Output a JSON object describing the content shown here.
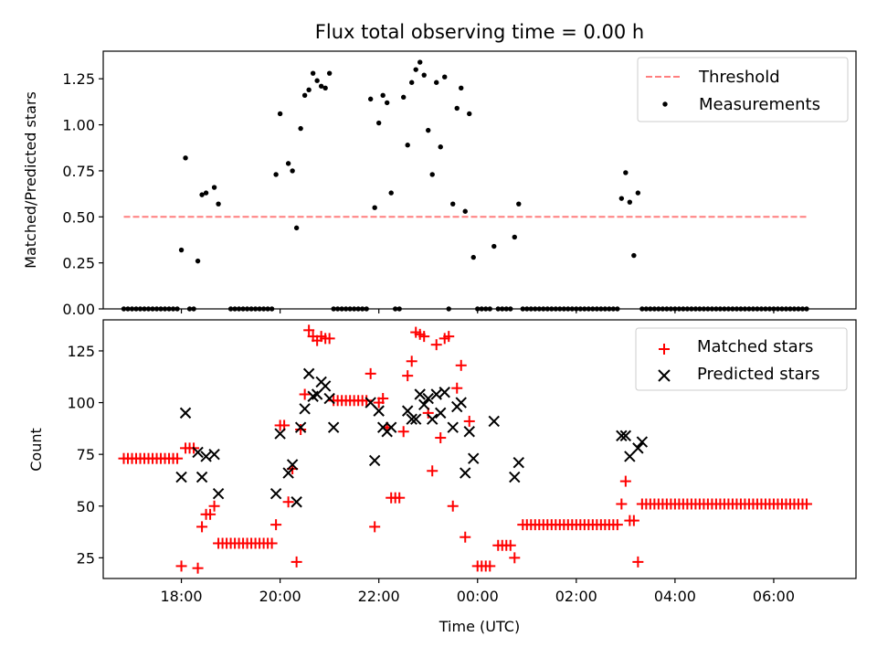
{
  "title": "Flux total observing time = 0.00 h",
  "xlabel": "Time (UTC)",
  "chart_data": [
    {
      "type": "scatter",
      "ylabel": "Matched/Predicted stars",
      "ylim": [
        0,
        1.4
      ],
      "yticks": [
        0.0,
        0.25,
        0.5,
        0.75,
        1.0,
        1.25
      ],
      "ytick_labels": [
        "0.00",
        "0.25",
        "0.50",
        "0.75",
        "1.00",
        "1.25"
      ],
      "xlim": [
        "16:25",
        "07:40"
      ],
      "x_tick_labels": [
        "18:00",
        "20:00",
        "22:00",
        "00:00",
        "02:00",
        "04:00",
        "06:00"
      ],
      "legend": "top-right",
      "threshold": {
        "name": "Threshold",
        "value": 0.5,
        "x_range": [
          "16:50",
          "06:40"
        ],
        "color": "#ff7f7f"
      },
      "series": [
        {
          "name": "Measurements",
          "color": "#000000",
          "marker": "dot",
          "points": [
            [
              "18:00",
              0.32
            ],
            [
              "18:05",
              0.82
            ],
            [
              "18:20",
              0.26
            ],
            [
              "18:25",
              0.62
            ],
            [
              "18:30",
              0.63
            ],
            [
              "18:40",
              0.66
            ],
            [
              "18:45",
              0.57
            ],
            [
              "19:55",
              0.73
            ],
            [
              "20:00",
              1.06
            ],
            [
              "20:10",
              0.79
            ],
            [
              "20:15",
              0.75
            ],
            [
              "20:20",
              0.44
            ],
            [
              "20:25",
              0.98
            ],
            [
              "20:30",
              1.16
            ],
            [
              "20:35",
              1.19
            ],
            [
              "20:40",
              1.28
            ],
            [
              "20:45",
              1.24
            ],
            [
              "20:50",
              1.21
            ],
            [
              "20:55",
              1.2
            ],
            [
              "21:00",
              1.28
            ],
            [
              "21:50",
              1.14
            ],
            [
              "21:55",
              0.55
            ],
            [
              "22:00",
              1.01
            ],
            [
              "22:05",
              1.16
            ],
            [
              "22:10",
              1.12
            ],
            [
              "22:15",
              0.63
            ],
            [
              "22:30",
              1.15
            ],
            [
              "22:35",
              0.89
            ],
            [
              "22:40",
              1.23
            ],
            [
              "22:45",
              1.3
            ],
            [
              "22:50",
              1.34
            ],
            [
              "22:55",
              1.27
            ],
            [
              "23:00",
              0.97
            ],
            [
              "23:05",
              0.73
            ],
            [
              "23:10",
              1.23
            ],
            [
              "23:15",
              0.88
            ],
            [
              "23:20",
              1.26
            ],
            [
              "23:30",
              0.57
            ],
            [
              "23:35",
              1.09
            ],
            [
              "23:40",
              1.2
            ],
            [
              "23:45",
              0.53
            ],
            [
              "23:50",
              1.06
            ],
            [
              "23:55",
              0.28
            ],
            [
              "00:20",
              0.34
            ],
            [
              "00:45",
              0.39
            ],
            [
              "00:50",
              0.57
            ],
            [
              "02:55",
              0.6
            ],
            [
              "03:00",
              0.74
            ],
            [
              "03:05",
              0.58
            ],
            [
              "03:10",
              0.29
            ],
            [
              "03:15",
              0.63
            ]
          ],
          "zero_runs": [
            [
              "16:50",
              "17:55",
              5
            ],
            [
              "18:10",
              "18:15",
              5
            ],
            [
              "19:00",
              "19:50",
              5
            ],
            [
              "21:05",
              "21:45",
              5
            ],
            [
              "22:20",
              "22:25",
              5
            ],
            [
              "23:25",
              "23:25",
              5
            ],
            [
              "00:00",
              "00:15",
              5
            ],
            [
              "00:25",
              "00:40",
              5
            ],
            [
              "00:55",
              "02:50",
              5
            ],
            [
              "03:20",
              "06:40",
              5
            ]
          ]
        }
      ]
    },
    {
      "type": "scatter",
      "ylabel": "Count",
      "ylim": [
        15,
        140
      ],
      "yticks": [
        25,
        50,
        75,
        100,
        125
      ],
      "ytick_labels": [
        "25",
        "50",
        "75",
        "100",
        "125"
      ],
      "xlim": [
        "16:25",
        "07:40"
      ],
      "x_tick_labels": [
        "18:00",
        "20:00",
        "22:00",
        "00:00",
        "02:00",
        "04:00",
        "06:00"
      ],
      "legend": "top-right",
      "series": [
        {
          "name": "Matched stars",
          "color": "#ff0000",
          "marker": "plus",
          "runs": [
            [
              "16:50",
              "17:55",
              5,
              73
            ],
            [
              "19:00",
              "19:50",
              5,
              32
            ],
            [
              "21:05",
              "21:45",
              5,
              101
            ],
            [
              "22:15",
              "22:25",
              5,
              54
            ],
            [
              "00:00",
              "00:15",
              5,
              21
            ],
            [
              "00:25",
              "00:40",
              5,
              31
            ],
            [
              "00:55",
              "02:50",
              5,
              41
            ],
            [
              "03:20",
              "06:40",
              5,
              51
            ]
          ],
          "points": [
            [
              "18:00",
              21
            ],
            [
              "18:05",
              78
            ],
            [
              "18:10",
              78
            ],
            [
              "18:15",
              78
            ],
            [
              "18:20",
              20
            ],
            [
              "18:25",
              40
            ],
            [
              "18:30",
              46
            ],
            [
              "18:35",
              46
            ],
            [
              "18:40",
              50
            ],
            [
              "18:45",
              32
            ],
            [
              "18:50",
              32
            ],
            [
              "18:55",
              32
            ],
            [
              "19:55",
              41
            ],
            [
              "20:00",
              89
            ],
            [
              "20:05",
              89
            ],
            [
              "20:10",
              52
            ],
            [
              "20:15",
              68
            ],
            [
              "20:20",
              23
            ],
            [
              "20:25",
              87
            ],
            [
              "20:30",
              104
            ],
            [
              "20:35",
              135
            ],
            [
              "20:40",
              132
            ],
            [
              "20:45",
              130
            ],
            [
              "20:50",
              132
            ],
            [
              "20:55",
              131
            ],
            [
              "21:00",
              131
            ],
            [
              "21:50",
              114
            ],
            [
              "21:55",
              40
            ],
            [
              "22:00",
              100
            ],
            [
              "22:05",
              102
            ],
            [
              "22:10",
              88
            ],
            [
              "22:30",
              86
            ],
            [
              "22:35",
              113
            ],
            [
              "22:40",
              120
            ],
            [
              "22:45",
              134
            ],
            [
              "22:50",
              133
            ],
            [
              "22:55",
              132
            ],
            [
              "23:00",
              95
            ],
            [
              "23:05",
              67
            ],
            [
              "23:10",
              128
            ],
            [
              "23:15",
              83
            ],
            [
              "23:20",
              131
            ],
            [
              "23:25",
              132
            ],
            [
              "23:30",
              50
            ],
            [
              "23:35",
              107
            ],
            [
              "23:40",
              118
            ],
            [
              "23:45",
              35
            ],
            [
              "23:50",
              91
            ],
            [
              "00:45",
              25
            ],
            [
              "02:55",
              51
            ],
            [
              "03:00",
              62
            ],
            [
              "03:05",
              43
            ],
            [
              "03:10",
              43
            ],
            [
              "03:15",
              23
            ]
          ]
        },
        {
          "name": "Predicted stars",
          "color": "#000000",
          "marker": "cross",
          "points": [
            [
              "18:00",
              64
            ],
            [
              "18:05",
              95
            ],
            [
              "18:20",
              76
            ],
            [
              "18:25",
              64
            ],
            [
              "18:30",
              74
            ],
            [
              "18:40",
              75
            ],
            [
              "18:45",
              56
            ],
            [
              "19:55",
              56
            ],
            [
              "20:00",
              85
            ],
            [
              "20:10",
              66
            ],
            [
              "20:15",
              70
            ],
            [
              "20:20",
              52
            ],
            [
              "20:25",
              88
            ],
            [
              "20:30",
              97
            ],
            [
              "20:35",
              114
            ],
            [
              "20:40",
              103
            ],
            [
              "20:45",
              104
            ],
            [
              "20:50",
              110
            ],
            [
              "20:55",
              108
            ],
            [
              "21:00",
              102
            ],
            [
              "21:05",
              88
            ],
            [
              "21:50",
              100
            ],
            [
              "21:55",
              72
            ],
            [
              "22:00",
              96
            ],
            [
              "22:05",
              88
            ],
            [
              "22:10",
              86
            ],
            [
              "22:15",
              88
            ],
            [
              "22:35",
              96
            ],
            [
              "22:40",
              92
            ],
            [
              "22:45",
              92
            ],
            [
              "22:50",
              104
            ],
            [
              "22:55",
              99
            ],
            [
              "23:00",
              102
            ],
            [
              "23:05",
              92
            ],
            [
              "23:10",
              104
            ],
            [
              "23:15",
              95
            ],
            [
              "23:20",
              105
            ],
            [
              "23:30",
              88
            ],
            [
              "23:35",
              98
            ],
            [
              "23:40",
              100
            ],
            [
              "23:45",
              66
            ],
            [
              "23:50",
              86
            ],
            [
              "23:55",
              73
            ],
            [
              "00:20",
              91
            ],
            [
              "00:45",
              64
            ],
            [
              "00:50",
              71
            ],
            [
              "02:55",
              84
            ],
            [
              "03:00",
              84
            ],
            [
              "03:05",
              74
            ],
            [
              "03:15",
              78
            ],
            [
              "03:20",
              81
            ]
          ]
        }
      ]
    }
  ]
}
